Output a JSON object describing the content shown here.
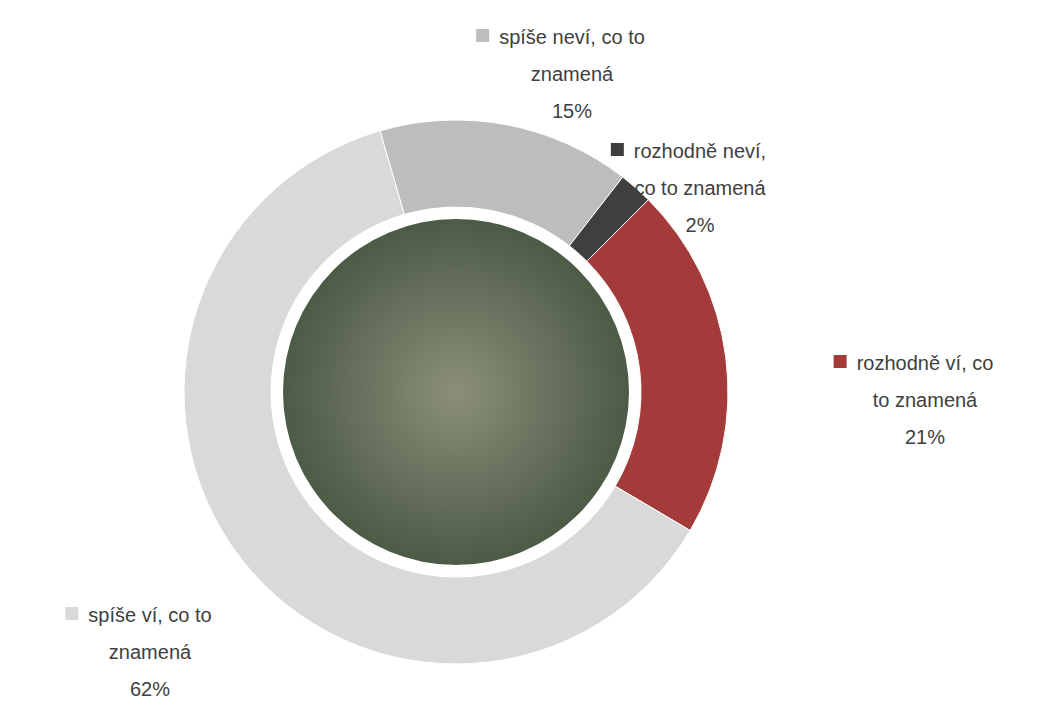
{
  "chart_data": {
    "type": "donut",
    "categories": [
      "rozhodně ví, co to znamená",
      "spíše ví, co to znamená",
      "spíše neví, co to znamená",
      "rozhodně neví, co to znamená"
    ],
    "values": [
      21,
      62,
      15,
      2
    ],
    "value_labels": [
      "21%",
      "62%",
      "15%",
      "2%"
    ],
    "colors": [
      "#a33b3b",
      "#d9d9d9",
      "#bdbdbd",
      "#3f3f3f"
    ],
    "data_labels": true
  }
}
